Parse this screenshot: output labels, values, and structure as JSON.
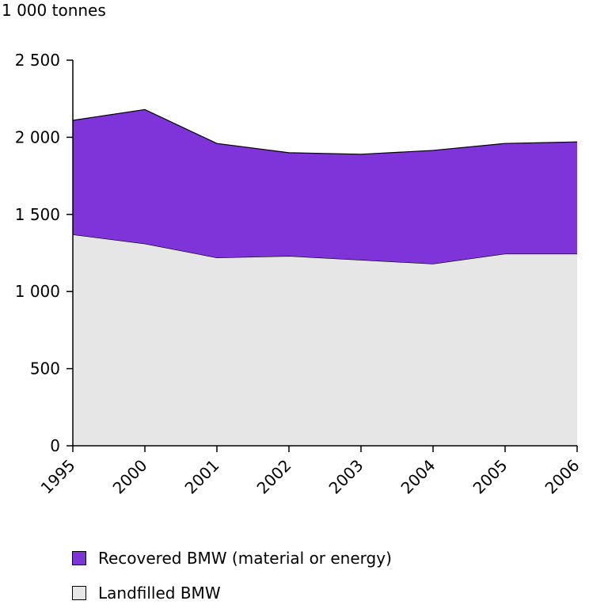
{
  "chart_data": {
    "type": "area",
    "stacked": true,
    "title": "",
    "ylabel": "1 000 tonnes",
    "xlabel": "",
    "categories": [
      "1995",
      "2000",
      "2001",
      "2002",
      "2003",
      "2004",
      "2005",
      "2006"
    ],
    "ylim": [
      0,
      2500
    ],
    "yticks": [
      0,
      500,
      1000,
      1500,
      2000,
      2500
    ],
    "ytick_labels": [
      "0",
      "500",
      "1 000",
      "1 500",
      "2 000",
      "2 500"
    ],
    "series": [
      {
        "name": "Landfilled BMW",
        "color": "#e6e6e6",
        "values": [
          1370,
          1310,
          1220,
          1230,
          1205,
          1180,
          1245,
          1245
        ]
      },
      {
        "name": "Recovered BMW (material or energy)",
        "color": "#7f34d9",
        "values": [
          740,
          870,
          740,
          670,
          685,
          735,
          715,
          725
        ]
      }
    ],
    "legend_position": "bottom-left",
    "grid": false
  }
}
